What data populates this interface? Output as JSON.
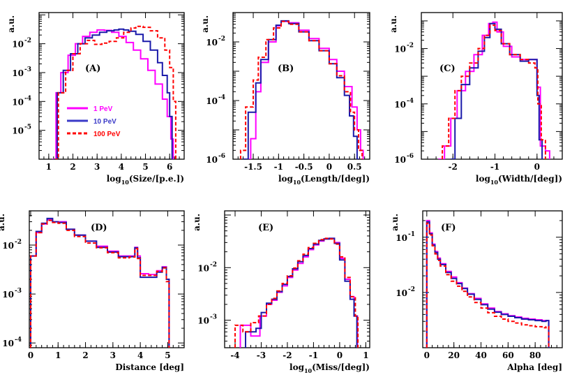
{
  "colors": {
    "s1": "#ff00ff",
    "s10": "#1a1aaa",
    "s100": "#ff0000",
    "frame": "#000000"
  },
  "legend": [
    {
      "label": "1 PeV",
      "color": "#ff00ff",
      "dash": "solid"
    },
    {
      "label": "10 PeV",
      "color": "#3a3ac8",
      "dash": "solid"
    },
    {
      "label": "100 PeV",
      "color": "#ff0000",
      "dash": "dashed"
    }
  ],
  "chart_data": [
    {
      "type": "line",
      "panel": "(A)",
      "ylabel": "a.u.",
      "xlabel_main": "log",
      "xlabel_sub": "10",
      "xlabel_rest": "(Size/[p.e.])",
      "xlim": [
        0.6,
        6.6
      ],
      "xticks": [
        1,
        2,
        3,
        4,
        5,
        6
      ],
      "xticklabels": [
        "1",
        "2",
        "3",
        "4",
        "5",
        "6"
      ],
      "yscale": "log",
      "ylim": [
        1e-06,
        0.12
      ],
      "ydecades": [
        -2,
        -3,
        -4,
        -5
      ],
      "series": [
        {
          "name": "1 PeV",
          "x": [
            1.15,
            1.3,
            1.5,
            1.8,
            2.1,
            2.4,
            2.7,
            3.0,
            3.3,
            3.6,
            3.9,
            4.2,
            4.5,
            4.8,
            5.1,
            5.4,
            5.7,
            5.9,
            6.05,
            6.15
          ],
          "y": [
            1e-06,
            0.0002,
            0.001,
            0.004,
            0.01,
            0.018,
            0.025,
            0.03,
            0.029,
            0.025,
            0.018,
            0.011,
            0.006,
            0.003,
            0.0012,
            0.0004,
            0.00012,
            3e-05,
            5e-06,
            1e-06
          ]
        },
        {
          "name": "10 PeV",
          "x": [
            1.2,
            1.35,
            1.6,
            1.9,
            2.2,
            2.5,
            2.8,
            3.1,
            3.4,
            3.7,
            3.9,
            4.1,
            4.3,
            4.6,
            4.9,
            5.2,
            5.5,
            5.7,
            5.9,
            6.0,
            6.1
          ],
          "y": [
            1e-06,
            0.0002,
            0.0012,
            0.0045,
            0.01,
            0.016,
            0.02,
            0.025,
            0.028,
            0.03,
            0.032,
            0.03,
            0.027,
            0.021,
            0.012,
            0.006,
            0.0022,
            0.0008,
            0.0002,
            3e-05,
            1e-06
          ]
        },
        {
          "name": "100 PeV",
          "x": [
            1.25,
            1.4,
            1.7,
            2.0,
            2.3,
            2.6,
            2.9,
            3.2,
            3.5,
            3.8,
            4.1,
            4.4,
            4.6,
            4.9,
            5.2,
            5.5,
            5.8,
            6.0,
            6.15,
            6.25
          ],
          "y": [
            1e-06,
            0.0002,
            0.0012,
            0.0045,
            0.01,
            0.013,
            0.0095,
            0.0105,
            0.012,
            0.016,
            0.025,
            0.035,
            0.04,
            0.037,
            0.028,
            0.016,
            0.006,
            0.0015,
            0.0001,
            1e-06
          ]
        }
      ]
    },
    {
      "type": "line",
      "panel": "(B)",
      "ylabel": "a.u.",
      "xlabel_main": "log",
      "xlabel_sub": "10",
      "xlabel_rest": "(Length/[deg])",
      "xlim": [
        -1.9,
        0.8
      ],
      "xticks": [
        -1.5,
        -1,
        -0.5,
        0,
        0.5
      ],
      "xticklabels": [
        "-1.5",
        "-1",
        "-0.5",
        "0",
        "0.5"
      ],
      "yscale": "log",
      "ylim": [
        1e-06,
        0.1
      ],
      "ydecades": [
        -2,
        -4,
        -6
      ],
      "series": [
        {
          "name": "1 PeV",
          "x": [
            -1.6,
            -1.55,
            -1.45,
            -1.35,
            -1.2,
            -1.05,
            -0.95,
            -0.8,
            -0.6,
            -0.4,
            -0.2,
            0.0,
            0.15,
            0.3,
            0.45,
            0.55,
            0.62,
            0.67
          ],
          "y": [
            1e-06,
            5e-06,
            0.0002,
            0.002,
            0.01,
            0.035,
            0.05,
            0.045,
            0.025,
            0.013,
            0.006,
            0.0025,
            0.001,
            0.0003,
            6e-05,
            1e-05,
            2e-06,
            1e-06
          ]
        },
        {
          "name": "10 PeV",
          "x": [
            -1.7,
            -1.6,
            -1.45,
            -1.35,
            -1.2,
            -1.05,
            -0.95,
            -0.8,
            -0.6,
            -0.4,
            -0.2,
            0.0,
            0.15,
            0.3,
            0.4,
            0.48,
            0.55,
            0.6
          ],
          "y": [
            1e-06,
            4e-05,
            0.0004,
            0.0025,
            0.012,
            0.037,
            0.052,
            0.042,
            0.022,
            0.011,
            0.005,
            0.0018,
            0.0006,
            0.00015,
            3e-05,
            6e-06,
            1e-06,
            1e-06
          ]
        },
        {
          "name": "100 PeV",
          "x": [
            -1.75,
            -1.65,
            -1.5,
            -1.4,
            -1.25,
            -1.1,
            -0.95,
            -0.8,
            -0.6,
            -0.4,
            -0.2,
            0.0,
            0.15,
            0.3,
            0.42,
            0.5,
            0.58,
            0.65
          ],
          "y": [
            2e-06,
            6e-05,
            0.0005,
            0.003,
            0.012,
            0.03,
            0.05,
            0.04,
            0.022,
            0.011,
            0.005,
            0.0018,
            0.0007,
            0.0002,
            4e-05,
            1e-05,
            2e-06,
            1e-06
          ]
        }
      ]
    },
    {
      "type": "line",
      "panel": "(C)",
      "ylabel": "a.u.",
      "xlabel_main": "log",
      "xlabel_sub": "10",
      "xlabel_rest": "(Width/[deg])",
      "xlim": [
        -2.75,
        0.6
      ],
      "xticks": [
        -2,
        -1,
        0
      ],
      "xticklabels": [
        "-2",
        "-1",
        "0"
      ],
      "yscale": "log",
      "ylim": [
        1e-06,
        0.2
      ],
      "ydecades": [
        -2,
        -4,
        -6
      ],
      "series": [
        {
          "name": "1 PeV",
          "x": [
            -2.35,
            -2.2,
            -2.05,
            -1.9,
            -1.7,
            -1.5,
            -1.3,
            -1.15,
            -1.05,
            -0.95,
            -0.8,
            -0.6,
            -0.4,
            -0.2,
            -0.08,
            0.0,
            0.08,
            0.2,
            0.3
          ],
          "y": [
            1e-06,
            3e-06,
            3e-05,
            0.0003,
            0.0015,
            0.006,
            0.03,
            0.08,
            0.09,
            0.04,
            0.012,
            0.005,
            0.004,
            0.004,
            0.004,
            0.0004,
            3e-06,
            2e-06,
            1e-06
          ]
        },
        {
          "name": "10 PeV",
          "x": [
            -2.05,
            -1.95,
            -1.8,
            -1.6,
            -1.4,
            -1.25,
            -1.12,
            -1.0,
            -0.85,
            -0.65,
            -0.4,
            -0.2,
            -0.08,
            0.0,
            0.05,
            0.12
          ],
          "y": [
            1e-06,
            3e-05,
            0.0005,
            0.002,
            0.008,
            0.025,
            0.08,
            0.05,
            0.015,
            0.006,
            0.0035,
            0.004,
            0.004,
            0.0002,
            5e-06,
            1e-06
          ]
        },
        {
          "name": "100 PeV",
          "x": [
            -2.25,
            -2.1,
            -1.95,
            -1.8,
            -1.6,
            -1.4,
            -1.25,
            -1.12,
            -1.0,
            -0.85,
            -0.65,
            -0.4,
            -0.2,
            -0.05,
            0.02,
            0.1,
            0.2
          ],
          "y": [
            3e-06,
            3e-05,
            0.0003,
            0.001,
            0.003,
            0.01,
            0.03,
            0.07,
            0.045,
            0.015,
            0.006,
            0.004,
            0.003,
            0.002,
            0.0001,
            5e-06,
            1e-06
          ]
        }
      ]
    },
    {
      "type": "line",
      "panel": "(D)",
      "ylabel": "a.u.",
      "xlabel": "Distance [deg]",
      "xlim": [
        -0.05,
        5.6
      ],
      "xticks": [
        0,
        1,
        2,
        3,
        4,
        5
      ],
      "xticklabels": [
        "0",
        "1",
        "2",
        "3",
        "4",
        "5"
      ],
      "yscale": "log",
      "ylim": [
        8e-05,
        0.05
      ],
      "ydecades": [
        -2,
        -3,
        -4
      ],
      "series": [
        {
          "name": "1 PeV",
          "x": [
            0.0,
            0.2,
            0.4,
            0.6,
            0.8,
            1.0,
            1.3,
            1.6,
            2.0,
            2.4,
            2.8,
            3.2,
            3.6,
            3.8,
            3.9,
            4.0,
            4.3,
            4.6,
            4.8,
            4.95,
            5.05
          ],
          "y": [
            0.006,
            0.018,
            0.027,
            0.033,
            0.03,
            0.03,
            0.021,
            0.016,
            0.012,
            0.0095,
            0.0075,
            0.006,
            0.006,
            0.009,
            0.006,
            0.0026,
            0.0025,
            0.003,
            0.0036,
            0.002,
            7e-05
          ]
        },
        {
          "name": "10 PeV",
          "x": [
            0.0,
            0.2,
            0.4,
            0.6,
            0.8,
            1.0,
            1.3,
            1.6,
            2.0,
            2.4,
            2.8,
            3.2,
            3.6,
            3.8,
            3.9,
            4.0,
            4.3,
            4.6,
            4.8,
            4.95,
            5.05
          ],
          "y": [
            0.006,
            0.019,
            0.028,
            0.035,
            0.03,
            0.029,
            0.021,
            0.016,
            0.012,
            0.009,
            0.0072,
            0.0058,
            0.0058,
            0.0088,
            0.0055,
            0.0022,
            0.0022,
            0.0028,
            0.0035,
            0.002,
            7e-05
          ]
        },
        {
          "name": "100 PeV",
          "x": [
            0.0,
            0.2,
            0.4,
            0.6,
            0.8,
            1.0,
            1.3,
            1.6,
            2.0,
            2.4,
            2.8,
            3.2,
            3.6,
            3.8,
            3.9,
            4.0,
            4.3,
            4.6,
            4.8,
            4.95,
            5.05
          ],
          "y": [
            0.006,
            0.018,
            0.027,
            0.032,
            0.029,
            0.028,
            0.02,
            0.015,
            0.011,
            0.0088,
            0.007,
            0.0055,
            0.0057,
            0.0085,
            0.0053,
            0.0024,
            0.0024,
            0.0029,
            0.0034,
            0.0018,
            7e-05
          ]
        }
      ]
    },
    {
      "type": "line",
      "panel": "(E)",
      "ylabel": "a.u.",
      "xlabel_main": "log",
      "xlabel_sub": "10",
      "xlabel_rest": "(Miss/[deg])",
      "xlim": [
        -4.4,
        1.15
      ],
      "xticks": [
        -4,
        -3,
        -2,
        -1,
        0,
        1
      ],
      "xticklabels": [
        "-4",
        "-3",
        "-2",
        "-1",
        "0",
        "1"
      ],
      "yscale": "log",
      "ylim": [
        0.0003,
        0.12
      ],
      "ydecades": [
        -2,
        -3
      ],
      "series": [
        {
          "name": "1 PeV",
          "x": [
            -3.8,
            -3.4,
            -3.05,
            -2.8,
            -2.6,
            -2.4,
            -2.2,
            -2.0,
            -1.8,
            -1.6,
            -1.4,
            -1.2,
            -1.0,
            -0.8,
            -0.6,
            -0.4,
            -0.2,
            0.0,
            0.2,
            0.4,
            0.55,
            0.68
          ],
          "y": [
            0.0008,
            0.0005,
            0.0012,
            0.002,
            0.0024,
            0.0034,
            0.0045,
            0.0065,
            0.009,
            0.012,
            0.016,
            0.022,
            0.027,
            0.032,
            0.035,
            0.036,
            0.03,
            0.015,
            0.006,
            0.0028,
            0.0012,
            0.0003
          ]
        },
        {
          "name": "10 PeV",
          "x": [
            -3.6,
            -3.2,
            -3.0,
            -2.8,
            -2.6,
            -2.4,
            -2.2,
            -2.0,
            -1.8,
            -1.6,
            -1.4,
            -1.2,
            -1.0,
            -0.8,
            -0.6,
            -0.4,
            -0.2,
            0.0,
            0.2,
            0.4,
            0.55,
            0.66
          ],
          "y": [
            0.0006,
            0.0007,
            0.0014,
            0.0021,
            0.0025,
            0.0035,
            0.0048,
            0.0068,
            0.0095,
            0.013,
            0.017,
            0.023,
            0.028,
            0.033,
            0.035,
            0.036,
            0.029,
            0.014,
            0.0055,
            0.0025,
            0.0012,
            0.0003
          ]
        },
        {
          "name": "100 PeV",
          "x": [
            -4.0,
            -3.7,
            -3.4,
            -3.1,
            -2.8,
            -2.6,
            -2.4,
            -2.2,
            -2.0,
            -1.8,
            -1.6,
            -1.4,
            -1.2,
            -1.0,
            -0.8,
            -0.6,
            -0.4,
            -0.2,
            0.0,
            0.2,
            0.4,
            0.6,
            0.7
          ],
          "y": [
            0.0008,
            0.0006,
            0.0009,
            0.0012,
            0.002,
            0.0026,
            0.0036,
            0.005,
            0.007,
            0.0098,
            0.0135,
            0.018,
            0.024,
            0.029,
            0.034,
            0.036,
            0.035,
            0.028,
            0.016,
            0.0065,
            0.0028,
            0.0012,
            0.0003
          ]
        }
      ]
    },
    {
      "type": "line",
      "panel": "(F)",
      "ylabel": "a.u.",
      "xlabel": "Alpha [deg]",
      "xlim": [
        -3,
        100
      ],
      "xticks": [
        0,
        20,
        40,
        60,
        80
      ],
      "xticklabels": [
        "0",
        "20",
        "40",
        "60",
        "80"
      ],
      "yscale": "log",
      "ylim": [
        0.001,
        0.3
      ],
      "ydecades": [
        -1,
        -2
      ],
      "series": [
        {
          "name": "1 PeV",
          "x": [
            0,
            2,
            4,
            6,
            8,
            10,
            14,
            18,
            22,
            26,
            30,
            35,
            40,
            45,
            50,
            55,
            60,
            65,
            70,
            75,
            80,
            85,
            88,
            90
          ],
          "y": [
            0.2,
            0.12,
            0.075,
            0.055,
            0.042,
            0.033,
            0.024,
            0.019,
            0.015,
            0.012,
            0.0095,
            0.0078,
            0.0062,
            0.0052,
            0.0045,
            0.0041,
            0.0038,
            0.0036,
            0.0034,
            0.0033,
            0.0032,
            0.0031,
            0.0031,
            0.001
          ]
        },
        {
          "name": "10 PeV",
          "x": [
            0,
            2,
            4,
            6,
            8,
            10,
            14,
            18,
            22,
            26,
            30,
            35,
            40,
            45,
            50,
            55,
            60,
            65,
            70,
            75,
            80,
            85,
            88,
            90
          ],
          "y": [
            0.19,
            0.115,
            0.072,
            0.053,
            0.04,
            0.032,
            0.023,
            0.018,
            0.0145,
            0.0118,
            0.0093,
            0.0075,
            0.006,
            0.005,
            0.0044,
            0.004,
            0.0037,
            0.0035,
            0.0033,
            0.0032,
            0.0031,
            0.003,
            0.0031,
            0.001
          ]
        },
        {
          "name": "100 PeV",
          "x": [
            0,
            2,
            4,
            6,
            8,
            10,
            14,
            18,
            22,
            26,
            30,
            35,
            40,
            45,
            50,
            55,
            60,
            65,
            70,
            75,
            80,
            85,
            88,
            90
          ],
          "y": [
            0.18,
            0.11,
            0.07,
            0.05,
            0.038,
            0.03,
            0.021,
            0.016,
            0.013,
            0.0105,
            0.0083,
            0.0066,
            0.0052,
            0.0043,
            0.0037,
            0.0033,
            0.003,
            0.0028,
            0.0026,
            0.0025,
            0.0024,
            0.0023,
            0.0024,
            0.001
          ]
        }
      ]
    }
  ]
}
